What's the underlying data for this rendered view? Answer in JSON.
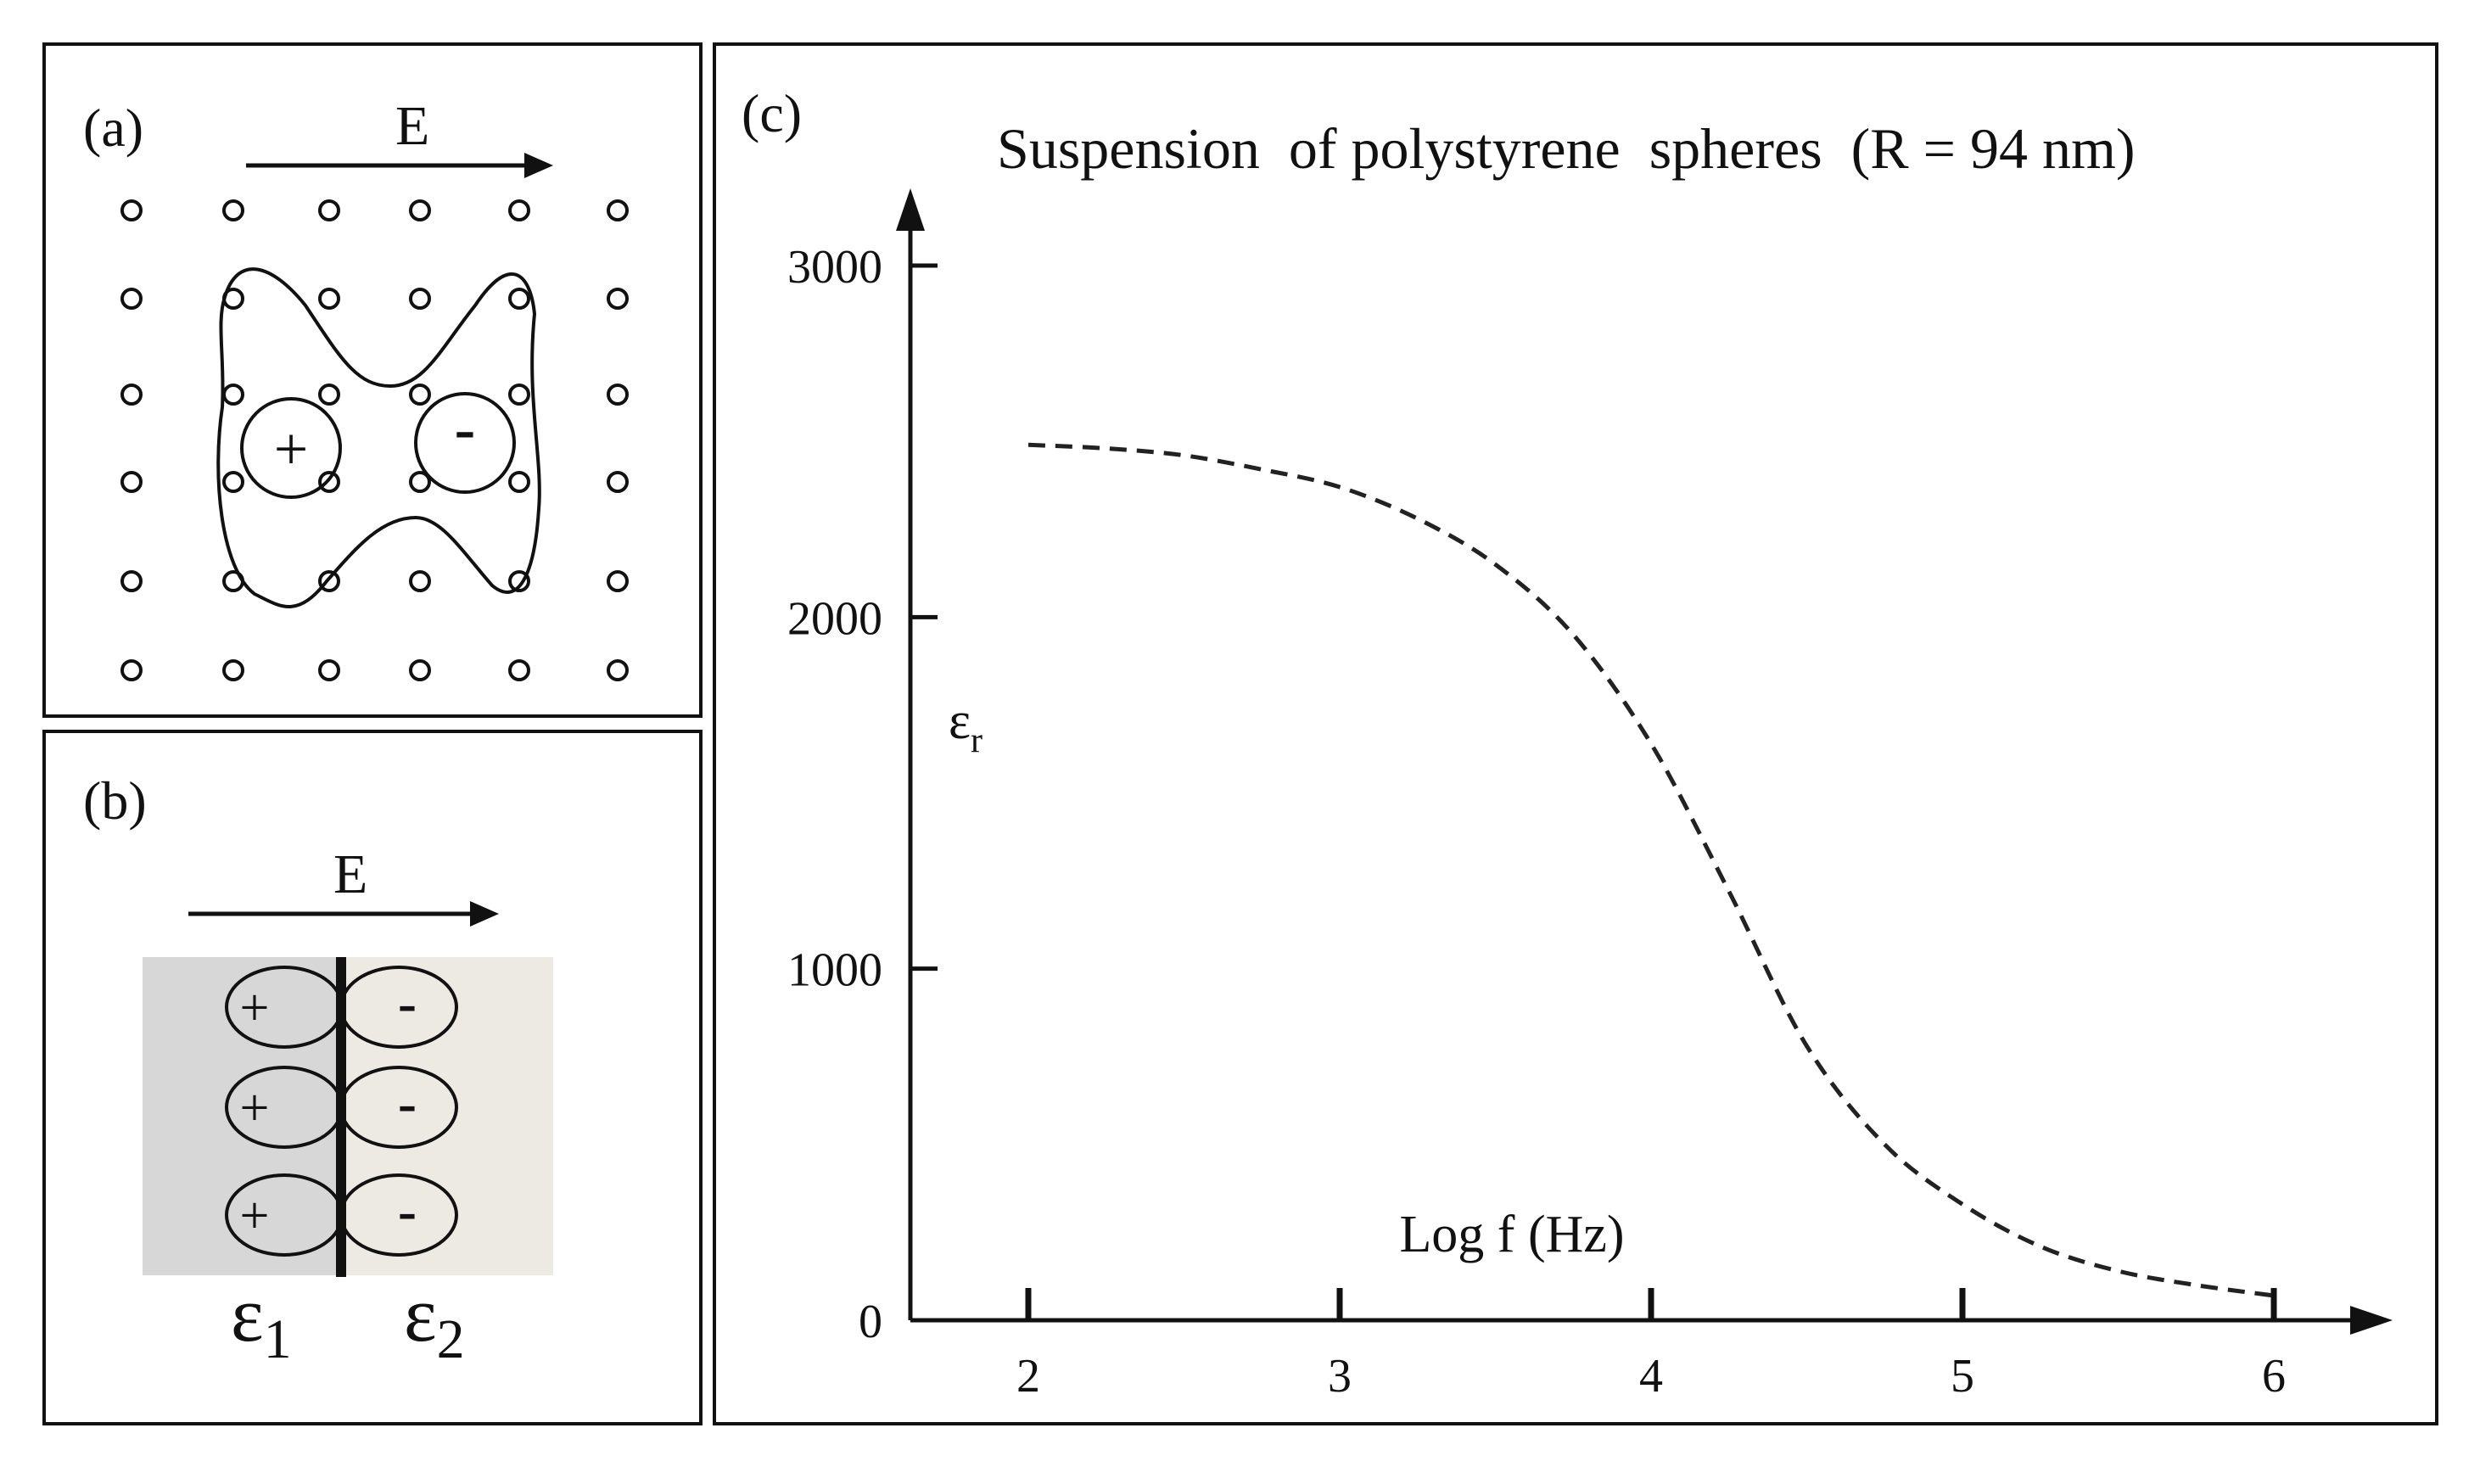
{
  "panel_a": {
    "label": "(a)",
    "field_label": "E",
    "positive_symbol": "+",
    "negative_symbol": "-"
  },
  "panel_b": {
    "label": "(b)",
    "field_label": "E",
    "positive_symbols": [
      "+",
      "+",
      "+"
    ],
    "negative_symbols": [
      "-",
      "-",
      "-"
    ],
    "epsilon_1": "ε",
    "epsilon_1_sub": "1",
    "epsilon_2": "ε",
    "epsilon_2_sub": "2",
    "colors": {
      "left_medium": "#d7d7d7",
      "right_medium": "#eceae2",
      "lobe_left": "#cfcfcf",
      "lobe_right": "#e4e3dc"
    }
  },
  "panel_c": {
    "label": "(c)",
    "title": "Suspension  of polystyrene  spheres  (R = 94 nm)",
    "y_axis_symbol": "ε",
    "y_axis_sub": "r",
    "x_axis_label": "Log f (Hz)",
    "y_ticks": [
      "0",
      "1000",
      "2000",
      "3000"
    ],
    "x_ticks": [
      "2",
      "3",
      "4",
      "5",
      "6"
    ]
  },
  "chart_data": {
    "type": "line",
    "title": "Suspension  of polystyrene  spheres  (R = 94 nm)",
    "xlabel": "Log f (Hz)",
    "ylabel": "εr",
    "xlim": [
      2,
      6
    ],
    "ylim": [
      0,
      3000
    ],
    "line_style": "dashed",
    "grid": false,
    "series": [
      {
        "x": [
          2.0,
          2.25,
          2.5,
          2.75,
          3.0,
          3.25,
          3.5,
          3.75,
          4.0,
          4.25,
          4.5,
          4.75,
          5.0,
          5.25,
          5.5,
          5.75,
          6.0
        ],
        "values": [
          2490,
          2480,
          2460,
          2420,
          2370,
          2280,
          2150,
          1950,
          1640,
          1220,
          780,
          500,
          330,
          210,
          140,
          100,
          70
        ]
      }
    ]
  }
}
